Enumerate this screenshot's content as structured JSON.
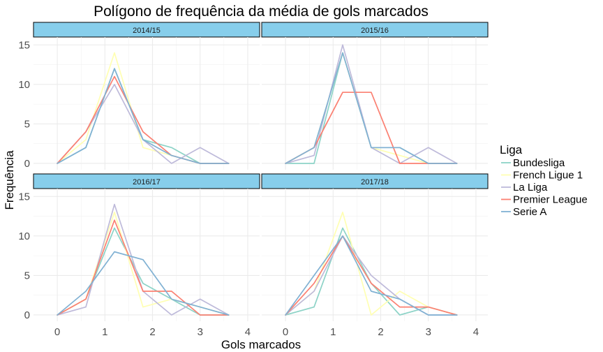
{
  "chart_data": {
    "type": "line",
    "title": "Polígono de frequência da média de gols marcados",
    "xlabel": "Gols marcados",
    "ylabel": "Frequência",
    "xlim": [
      -0.5,
      4.25
    ],
    "ylim": [
      -0.8,
      16
    ],
    "x_ticks": [
      0,
      1,
      2,
      3,
      4
    ],
    "y_ticks": [
      0,
      5,
      10,
      15
    ],
    "grid": true,
    "legend": {
      "title": "Liga",
      "position": "right"
    },
    "series_styles": [
      {
        "name": "Bundesliga",
        "color": "#8dd3c7"
      },
      {
        "name": "French Ligue 1",
        "color": "#ffffb3"
      },
      {
        "name": "La Liga",
        "color": "#bebada"
      },
      {
        "name": "Premier League",
        "color": "#fb8072"
      },
      {
        "name": "Serie A",
        "color": "#80b1d3"
      }
    ],
    "x": [
      0,
      0.6,
      1.2,
      1.8,
      2.4,
      3.0,
      3.6
    ],
    "panels": [
      {
        "label": "2014/15",
        "series": [
          {
            "name": "Bundesliga",
            "values": [
              0,
              2,
              12,
              3,
              2,
              0,
              0
            ]
          },
          {
            "name": "French Ligue 1",
            "values": [
              0,
              3,
              14,
              2,
              1,
              0,
              0
            ]
          },
          {
            "name": "La Liga",
            "values": [
              0,
              4,
              10,
              3,
              0,
              2,
              0
            ]
          },
          {
            "name": "Premier League",
            "values": [
              0,
              4,
              11,
              4,
              1,
              0,
              0
            ]
          },
          {
            "name": "Serie A",
            "values": [
              0,
              2,
              12,
              3,
              1,
              0,
              0
            ]
          }
        ]
      },
      {
        "label": "2015/16",
        "series": [
          {
            "name": "Bundesliga",
            "values": [
              0,
              0,
              14,
              2,
              2,
              0,
              0
            ]
          },
          {
            "name": "French Ligue 1",
            "values": [
              0,
              2,
              14,
              2,
              1,
              0,
              0
            ]
          },
          {
            "name": "La Liga",
            "values": [
              0,
              1,
              15,
              2,
              0,
              2,
              0
            ]
          },
          {
            "name": "Premier League",
            "values": [
              0,
              2,
              9,
              9,
              0,
              0,
              0
            ]
          },
          {
            "name": "Serie A",
            "values": [
              0,
              2,
              14,
              2,
              2,
              0,
              0
            ]
          }
        ]
      },
      {
        "label": "2016/17",
        "series": [
          {
            "name": "Bundesliga",
            "values": [
              0,
              2,
              11,
              4,
              2,
              0,
              0
            ]
          },
          {
            "name": "French Ligue 1",
            "values": [
              0,
              2,
              13,
              1,
              2,
              1,
              0
            ]
          },
          {
            "name": "La Liga",
            "values": [
              0,
              1,
              14,
              3,
              0,
              2,
              0
            ]
          },
          {
            "name": "Premier League",
            "values": [
              0,
              2,
              12,
              3,
              3,
              0,
              0
            ]
          },
          {
            "name": "Serie A",
            "values": [
              0,
              3,
              8,
              7,
              2,
              1,
              0
            ]
          }
        ]
      },
      {
        "label": "2017/18",
        "series": [
          {
            "name": "Bundesliga",
            "values": [
              0,
              1,
              11,
              4,
              0,
              1,
              0
            ]
          },
          {
            "name": "French Ligue 1",
            "values": [
              0,
              3,
              13,
              0,
              3,
              1,
              0
            ]
          },
          {
            "name": "La Liga",
            "values": [
              0,
              3,
              10,
              5,
              2,
              0,
              0
            ]
          },
          {
            "name": "Premier League",
            "values": [
              0,
              4,
              10,
              4,
              1,
              1,
              0
            ]
          },
          {
            "name": "Serie A",
            "values": [
              0,
              5,
              10,
              3,
              2,
              0,
              0
            ]
          }
        ]
      }
    ]
  }
}
